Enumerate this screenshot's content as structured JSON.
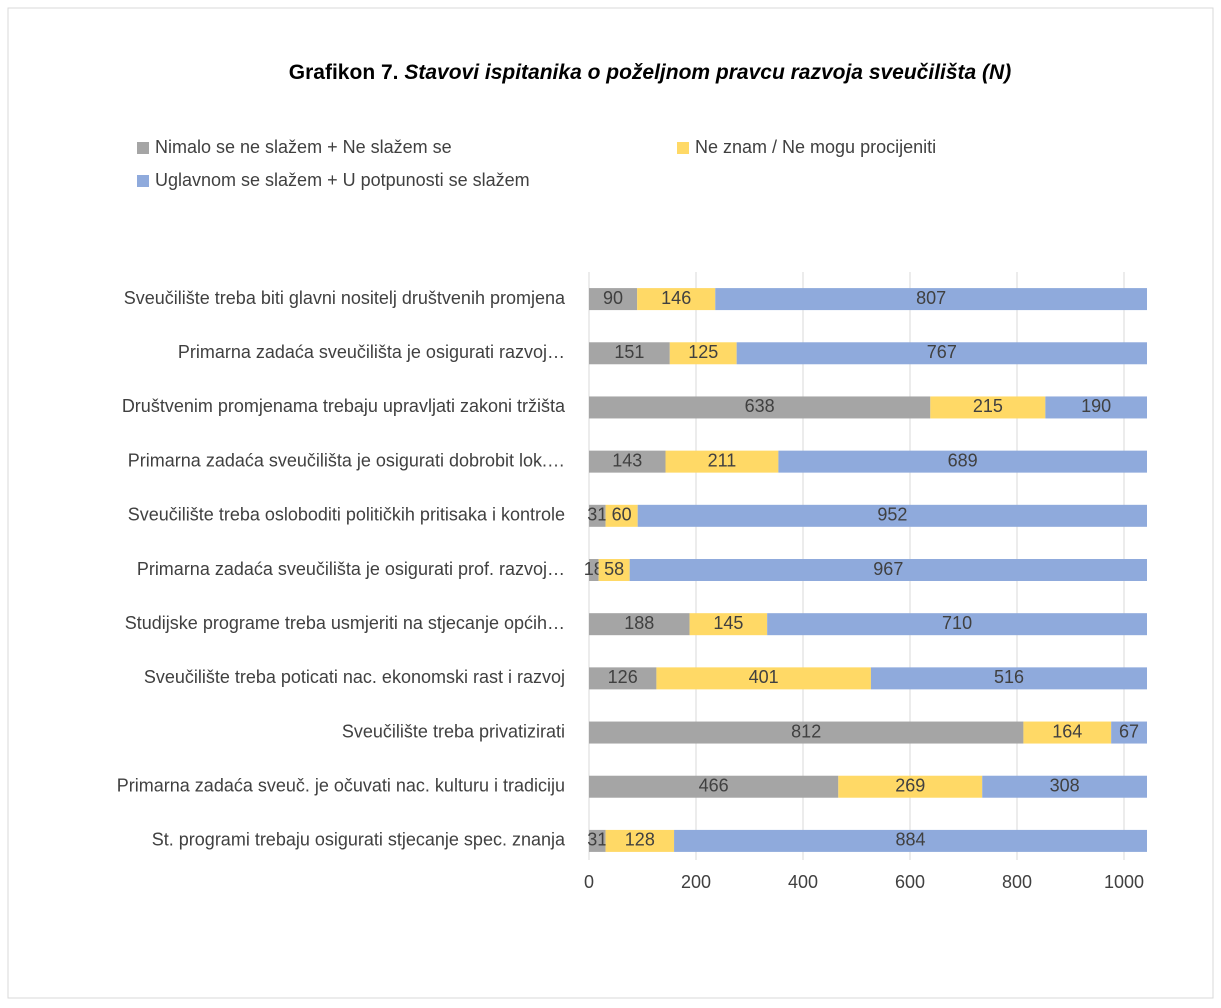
{
  "chart_data": {
    "type": "stacked_bar_horizontal",
    "title": [
      "Grafikon 7.",
      "Stavovi ispitanika o poželjnom pravcu razvoja sveučilišta (N)"
    ],
    "categories": [
      "Sveučilište treba biti glavni nositelj društvenih promjena",
      "Primarna zadaća sveučilišta je osigurati razvoj…",
      "Društvenim promjenama trebaju upravljati zakoni tržišta",
      "Primarna zadaća sveučilišta je osigurati dobrobit lok.…",
      "Sveučilište treba osloboditi političkih pritisaka i kontrole",
      "Primarna zadaća sveučilišta je osigurati prof. razvoj…",
      "Studijske programe treba usmjeriti na stjecanje općih…",
      "Sveučilište treba poticati nac. ekonomski rast i razvoj",
      "Sveučilište treba privatizirati",
      "Primarna zadaća sveuč. je očuvati nac. kulturu i tradiciju",
      "St. programi trebaju osigurati stjecanje spec. znanja"
    ],
    "series": [
      {
        "name": "Nimalo se ne slažem + Ne slažem se",
        "color": "#a5a5a5",
        "values": [
          90,
          151,
          638,
          143,
          31,
          18,
          188,
          126,
          812,
          466,
          31
        ]
      },
      {
        "name": "Ne znam / Ne mogu procijeniti",
        "color": "#ffd966",
        "values": [
          146,
          125,
          215,
          211,
          60,
          58,
          145,
          401,
          164,
          269,
          128
        ]
      },
      {
        "name": "Uglavnom se slažem + U potpunosti se slažem",
        "color": "#8faadc",
        "values": [
          807,
          767,
          190,
          689,
          952,
          967,
          710,
          516,
          67,
          308,
          884
        ]
      }
    ],
    "xlim": [
      0,
      1043
    ],
    "xticks": [
      0,
      200,
      400,
      600,
      800,
      1000
    ],
    "grid": true
  }
}
